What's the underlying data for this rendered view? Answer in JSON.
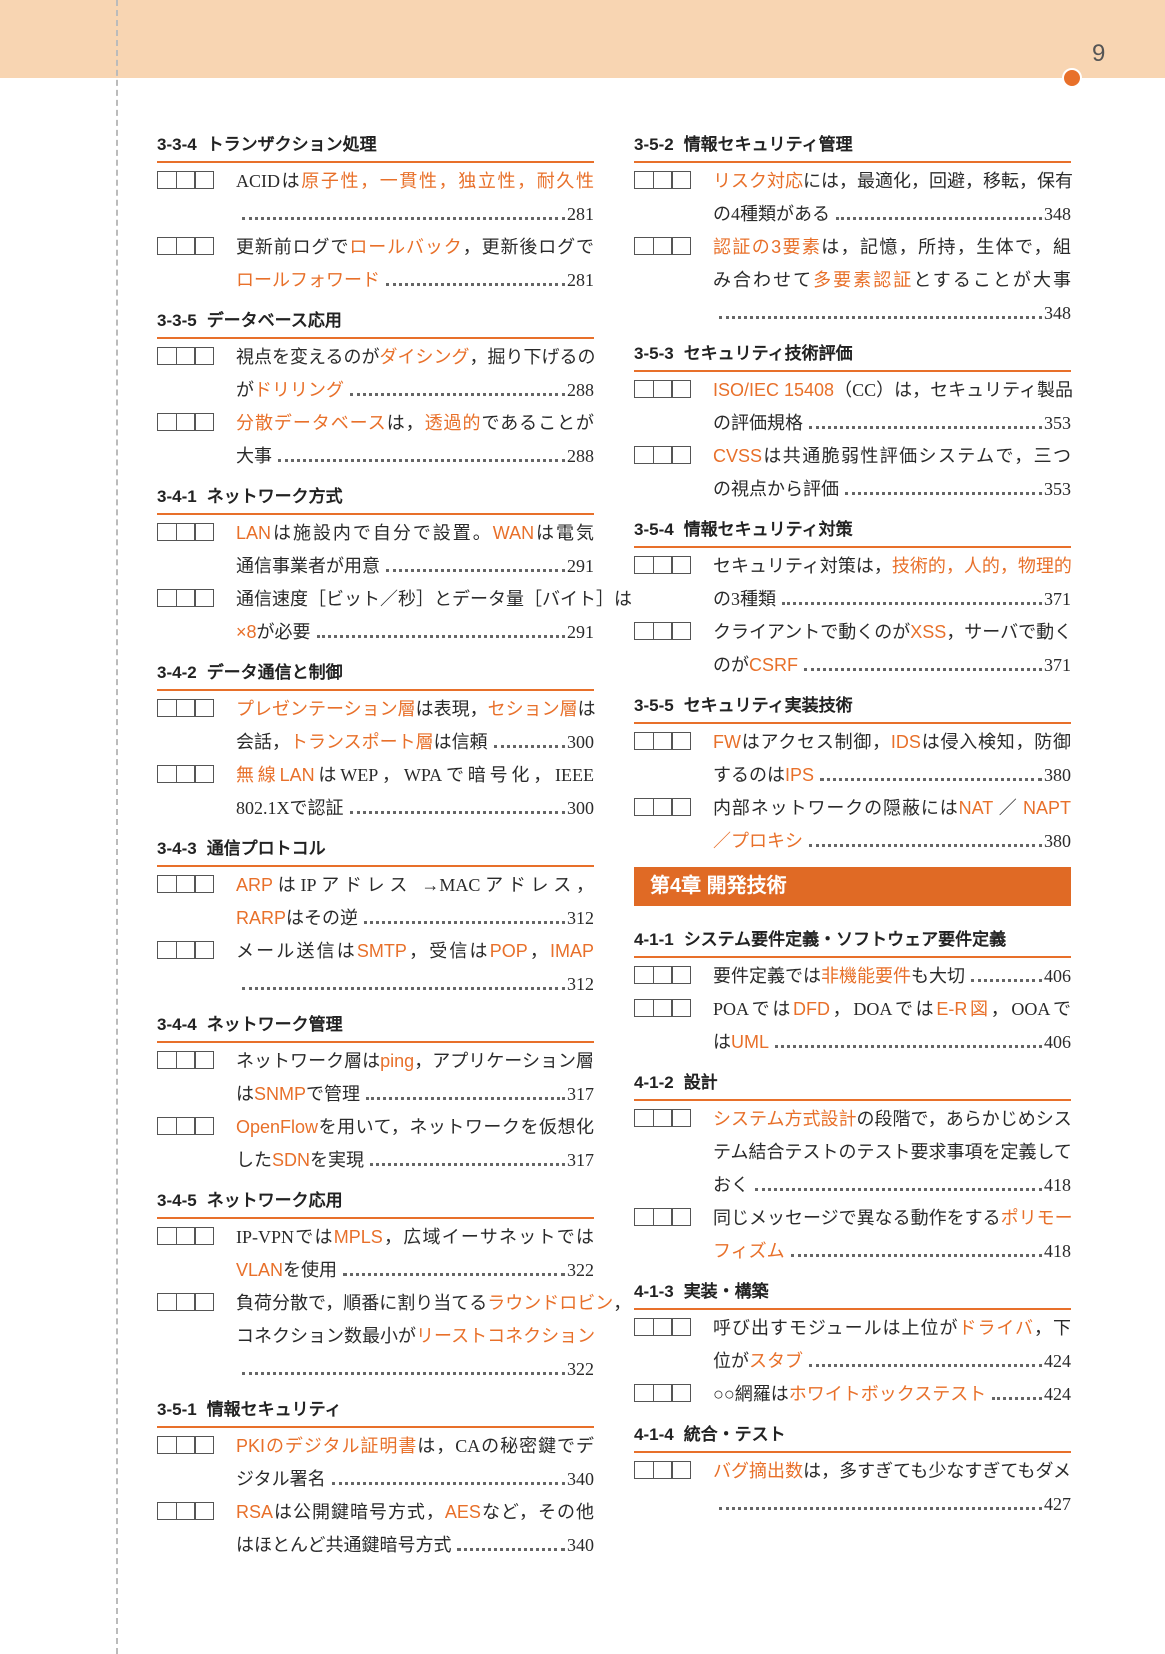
{
  "page_number": "9",
  "colors": {
    "accent": "#e8702a",
    "header_band": "#f8d5b2",
    "chapter_bar": "#e06a25"
  },
  "left": [
    {
      "num": "3-3-4",
      "title": "トランザクション処理",
      "items": [
        {
          "lines": [
            [
              [
                "ACIDは",
                false
              ],
              [
                "原子性，一貫性，独立性，耐久性",
                true
              ]
            ],
            []
          ],
          "page": "281"
        },
        {
          "lines": [
            [
              [
                "更新前ログで",
                false
              ],
              [
                "ロールバック",
                true
              ],
              [
                "，更新後ログで",
                false
              ]
            ],
            [
              [
                "ロールフォワード",
                true
              ]
            ]
          ],
          "page": "281"
        }
      ]
    },
    {
      "num": "3-3-5",
      "title": "データベース応用",
      "items": [
        {
          "lines": [
            [
              [
                "視点を変えるのが",
                false
              ],
              [
                "ダイシング",
                true
              ],
              [
                "，掘り下げるの",
                false
              ]
            ],
            [
              [
                "が",
                false
              ],
              [
                "ドリリング",
                true
              ]
            ]
          ],
          "page": "288"
        },
        {
          "lines": [
            [
              [
                "分散データベース",
                true
              ],
              [
                "は，",
                false
              ],
              [
                "透過的",
                true
              ],
              [
                "であることが",
                false
              ]
            ],
            [
              [
                "大事",
                false
              ]
            ]
          ],
          "page": "288"
        }
      ]
    },
    {
      "num": "3-4-1",
      "title": "ネットワーク方式",
      "items": [
        {
          "lines": [
            [
              [
                "LAN",
                true
              ],
              [
                "は施設内で自分で設置。",
                false
              ],
              [
                "WAN",
                true
              ],
              [
                "は電気",
                false
              ]
            ],
            [
              [
                "通信事業者が用意",
                false
              ]
            ]
          ],
          "page": "291"
        },
        {
          "lines": [
            [
              [
                "通信速度［ビット／秒］とデータ量［バイト］は",
                false
              ]
            ],
            [
              [
                "×8",
                true
              ],
              [
                "が必要",
                false
              ]
            ]
          ],
          "page": "291"
        }
      ]
    },
    {
      "num": "3-4-2",
      "title": "データ通信と制御",
      "items": [
        {
          "lines": [
            [
              [
                "プレゼンテーション層",
                true
              ],
              [
                "は表現，",
                false
              ],
              [
                "セション層",
                true
              ],
              [
                "は",
                false
              ]
            ],
            [
              [
                "会話，",
                false
              ],
              [
                "トランスポート層",
                true
              ],
              [
                "は信頼",
                false
              ]
            ]
          ],
          "page": "300"
        },
        {
          "lines": [
            [
              [
                "無線LAN",
                true
              ],
              [
                "はWEP，WPAで暗号化，IEEE",
                false
              ]
            ],
            [
              [
                "802.1Xで認証",
                false
              ]
            ]
          ],
          "page": "300"
        }
      ]
    },
    {
      "num": "3-4-3",
      "title": "通信プロトコル",
      "items": [
        {
          "lines": [
            [
              [
                "ARP",
                true
              ],
              [
                "はIPアドレス →MACアドレス，",
                false
              ]
            ],
            [
              [
                "RARP",
                true
              ],
              [
                "はその逆",
                false
              ]
            ]
          ],
          "page": "312"
        },
        {
          "lines": [
            [
              [
                "メール送信は",
                false
              ],
              [
                "SMTP",
                true
              ],
              [
                "，受信は",
                false
              ],
              [
                "POP",
                true
              ],
              [
                "，",
                false
              ],
              [
                "IMAP",
                true
              ]
            ],
            []
          ],
          "page": "312"
        }
      ]
    },
    {
      "num": "3-4-4",
      "title": "ネットワーク管理",
      "items": [
        {
          "lines": [
            [
              [
                "ネットワーク層は",
                false
              ],
              [
                "ping",
                true
              ],
              [
                "，アプリケーション層",
                false
              ]
            ],
            [
              [
                "は",
                false
              ],
              [
                "SNMP",
                true
              ],
              [
                "で管理",
                false
              ]
            ]
          ],
          "page": "317"
        },
        {
          "lines": [
            [
              [
                "OpenFlow",
                true
              ],
              [
                "を用いて，ネットワークを仮想化",
                false
              ]
            ],
            [
              [
                "した",
                false
              ],
              [
                "SDN",
                true
              ],
              [
                "を実現",
                false
              ]
            ]
          ],
          "page": "317"
        }
      ]
    },
    {
      "num": "3-4-5",
      "title": "ネットワーク応用",
      "items": [
        {
          "lines": [
            [
              [
                "IP-VPNでは",
                false
              ],
              [
                "MPLS",
                true
              ],
              [
                "，広域イーサネットでは",
                false
              ]
            ],
            [
              [
                "VLAN",
                true
              ],
              [
                "を使用",
                false
              ]
            ]
          ],
          "page": "322"
        },
        {
          "lines": [
            [
              [
                "負荷分散で，順番に割り当てる",
                false
              ],
              [
                "ラウンドロビン",
                true
              ],
              [
                "，",
                false
              ]
            ],
            [
              [
                "コネクション数最小が",
                false
              ],
              [
                "リーストコネクション",
                true
              ]
            ],
            []
          ],
          "page": "322"
        }
      ]
    },
    {
      "num": "3-5-1",
      "title": "情報セキュリティ",
      "items": [
        {
          "lines": [
            [
              [
                "PKIのデジタル証明書",
                true
              ],
              [
                "は，CAの秘密鍵でデ",
                false
              ]
            ],
            [
              [
                "ジタル署名",
                false
              ]
            ]
          ],
          "page": "340"
        },
        {
          "lines": [
            [
              [
                "RSA",
                true
              ],
              [
                "は公開鍵暗号方式，",
                false
              ],
              [
                "AES",
                true
              ],
              [
                "など，その他",
                false
              ]
            ],
            [
              [
                "はほとんど共通鍵暗号方式",
                false
              ]
            ]
          ],
          "page": "340"
        }
      ]
    }
  ],
  "right": [
    {
      "num": "3-5-2",
      "title": "情報セキュリティ管理",
      "items": [
        {
          "lines": [
            [
              [
                "リスク対応",
                true
              ],
              [
                "には，最適化，回避，移転，保有",
                false
              ]
            ],
            [
              [
                "の4種類がある",
                false
              ]
            ]
          ],
          "page": "348"
        },
        {
          "lines": [
            [
              [
                "認証の3要素",
                true
              ],
              [
                "は，記憶，所持，生体で，組",
                false
              ]
            ],
            [
              [
                "み合わせて",
                false
              ],
              [
                "多要素認証",
                true
              ],
              [
                "とすることが大事",
                false
              ]
            ],
            []
          ],
          "page": "348"
        }
      ]
    },
    {
      "num": "3-5-3",
      "title": "セキュリティ技術評価",
      "items": [
        {
          "lines": [
            [
              [
                "ISO/IEC 15408",
                true
              ],
              [
                "（CC）は，セキュリティ製品",
                false
              ]
            ],
            [
              [
                "の評価規格",
                false
              ]
            ]
          ],
          "page": "353"
        },
        {
          "lines": [
            [
              [
                "CVSS",
                true
              ],
              [
                "は共通脆弱性評価システムで，三つ",
                false
              ]
            ],
            [
              [
                "の視点から評価",
                false
              ]
            ]
          ],
          "page": "353"
        }
      ]
    },
    {
      "num": "3-5-4",
      "title": "情報セキュリティ対策",
      "items": [
        {
          "lines": [
            [
              [
                "セキュリティ対策は，",
                false
              ],
              [
                "技術的，人的，物理的",
                true
              ]
            ],
            [
              [
                "の3種類",
                false
              ]
            ]
          ],
          "page": "371"
        },
        {
          "lines": [
            [
              [
                "クライアントで動くのが",
                false
              ],
              [
                "XSS",
                true
              ],
              [
                "，サーバで動く",
                false
              ]
            ],
            [
              [
                "のが",
                false
              ],
              [
                "CSRF",
                true
              ]
            ]
          ],
          "page": "371"
        }
      ]
    },
    {
      "num": "3-5-5",
      "title": "セキュリティ実装技術",
      "items": [
        {
          "lines": [
            [
              [
                "FW",
                true
              ],
              [
                "はアクセス制御，",
                false
              ],
              [
                "IDS",
                true
              ],
              [
                "は侵入検知，防御",
                false
              ]
            ],
            [
              [
                "するのは",
                false
              ],
              [
                "IPS",
                true
              ]
            ]
          ],
          "page": "380"
        },
        {
          "lines": [
            [
              [
                "内部ネットワークの隠蔽には",
                false
              ],
              [
                "NAT",
                true
              ],
              [
                " ／ ",
                false
              ],
              [
                "NAPT",
                true
              ]
            ],
            [
              [
                "／プロキシ",
                true
              ]
            ]
          ],
          "page": "380"
        }
      ]
    },
    {
      "chapter": "第4章  開発技術"
    },
    {
      "num": "4-1-1",
      "title": "システム要件定義・ソフトウェア要件定義",
      "items": [
        {
          "lines": [
            [
              [
                "要件定義では",
                false
              ],
              [
                "非機能要件",
                true
              ],
              [
                "も大切",
                false
              ]
            ]
          ],
          "page": "406"
        },
        {
          "lines": [
            [
              [
                "POAでは",
                false
              ],
              [
                "DFD",
                true
              ],
              [
                "，DOAでは",
                false
              ],
              [
                "E-R図",
                true
              ],
              [
                "，OOAで",
                false
              ]
            ],
            [
              [
                "は",
                false
              ],
              [
                "UML",
                true
              ]
            ]
          ],
          "page": "406"
        }
      ]
    },
    {
      "num": "4-1-2",
      "title": "設計",
      "items": [
        {
          "lines": [
            [
              [
                "システム方式設計",
                true
              ],
              [
                "の段階で，あらかじめシス",
                false
              ]
            ],
            [
              [
                "テム結合テストのテスト要求事項を定義して",
                false
              ]
            ],
            [
              [
                "おく",
                false
              ]
            ]
          ],
          "page": "418"
        },
        {
          "lines": [
            [
              [
                "同じメッセージで異なる動作をする",
                false
              ],
              [
                "ポリモー",
                true
              ]
            ],
            [
              [
                "フィズム",
                true
              ]
            ]
          ],
          "page": "418"
        }
      ]
    },
    {
      "num": "4-1-3",
      "title": "実装・構築",
      "items": [
        {
          "lines": [
            [
              [
                "呼び出すモジュールは上位が",
                false
              ],
              [
                "ドライバ",
                true
              ],
              [
                "，下",
                false
              ]
            ],
            [
              [
                "位が",
                false
              ],
              [
                "スタブ",
                true
              ]
            ]
          ],
          "page": "424"
        },
        {
          "lines": [
            [
              [
                "○○網羅は",
                false
              ],
              [
                "ホワイトボックステスト",
                true
              ]
            ]
          ],
          "page": "424"
        }
      ]
    },
    {
      "num": "4-1-4",
      "title": "統合・テスト",
      "items": [
        {
          "lines": [
            [
              [
                "バグ摘出数",
                true
              ],
              [
                "は，多すぎても少なすぎてもダメ",
                false
              ]
            ],
            []
          ],
          "page": "427"
        }
      ]
    }
  ]
}
